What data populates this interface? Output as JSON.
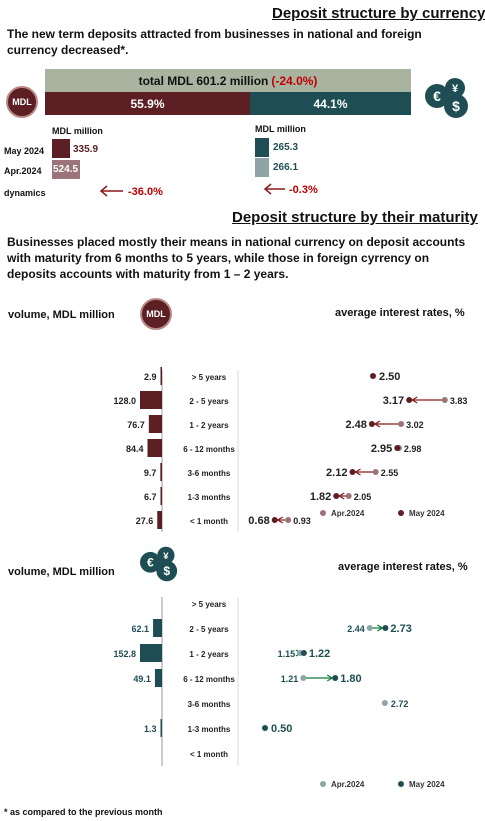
{
  "structure_currency": {
    "title": "Deposit structure by currency",
    "intro": "The new term deposits attracted from businesses in national and foreign currency decreased*.",
    "total_label": "total MDL 601.2 million",
    "total_change": "(-24.0%)",
    "share_mdl": "55.9%",
    "share_fx": "44.1%",
    "unit_left": "MDL million",
    "unit_right": "MDL million",
    "row_may": "May 2024",
    "row_apr": "Apr.2024",
    "row_dynamics": "dynamics",
    "mdl_may": "335.9",
    "mdl_apr": "524.5",
    "mdl_dynamics": "-36.0%",
    "fx_may": "265.3",
    "fx_apr": "266.1",
    "fx_dynamics": "-0.3%"
  },
  "mdl_badge": "MDL",
  "structure_maturity": {
    "title": "Deposit structure by their maturity",
    "intro": "Businesses placed mostly their means in national currency on deposit accounts with maturity from 6 months to 5 years, while those in foreign cyrrency on deposits accounts with maturity from 1 – 2 years."
  },
  "panel_mdl": {
    "volume_label": "volume, MDL million",
    "rates_label": "average interest rates, %",
    "legend_apr": "Apr.2024",
    "legend_may": "May 2024"
  },
  "panel_fx": {
    "volume_label": "volume, MDL million",
    "rates_label": "average interest rates, %",
    "legend_apr": "Apr.2024",
    "legend_may": "May 2024"
  },
  "footnote": "* as compared to the previous month",
  "colors": {
    "maroon": "#5b1f24",
    "teal": "#1e4e54",
    "maroon_light": "#9a7478",
    "teal_light": "#8fa4a6",
    "header_grey": "#a8b4a0",
    "red": "#c00000"
  },
  "chart_data": [
    {
      "type": "bar",
      "categories": [
        "> 5 years",
        "2 - 5 years",
        "1 - 2 years",
        "6 - 12 months",
        "3-6 months",
        "1-3 months",
        "< 1 month"
      ],
      "values": [
        2.9,
        128.0,
        76.7,
        84.4,
        9.7,
        6.7,
        27.6
      ],
      "value_labels": [
        "2.9",
        "128.0",
        "76.7",
        "84.4",
        "9.7",
        "6.7",
        "27.6"
      ],
      "title": "volume, MDL million"
    },
    {
      "type": "scatter",
      "categories": [
        "> 5 years",
        "2 - 5 years",
        "1 - 2 years",
        "6 - 12 months",
        "3-6 months",
        "1-3 months",
        "< 1 month"
      ],
      "series": [
        {
          "name": "Apr.2024",
          "values": [
            null,
            3.83,
            3.02,
            2.98,
            2.55,
            2.05,
            0.93
          ],
          "labels": [
            "",
            "3.83",
            "3.02",
            "2.98",
            "2.55",
            "2.05",
            "0.93"
          ]
        },
        {
          "name": "May 2024",
          "values": [
            2.5,
            3.17,
            2.48,
            2.95,
            2.12,
            1.82,
            0.68
          ],
          "labels": [
            "2.50",
            "3.17",
            "2.48",
            "2.95",
            "2.12",
            "1.82",
            "0.68"
          ]
        }
      ],
      "title": "average interest rates, %",
      "xlim": [
        0,
        4.2
      ]
    },
    {
      "type": "bar",
      "categories": [
        "> 5 years",
        "2 - 5 years",
        "1 - 2 years",
        "6 - 12 months",
        "3-6 months",
        "1-3 months",
        "< 1 month"
      ],
      "values": [
        null,
        62.1,
        152.8,
        49.1,
        null,
        1.3,
        null
      ],
      "value_labels": [
        "",
        "62.1",
        "152.8",
        "49.1",
        "",
        "1.3",
        ""
      ],
      "title": "volume, MDL million"
    },
    {
      "type": "scatter",
      "categories": [
        "> 5 years",
        "2 - 5 years",
        "1 - 2 years",
        "6 - 12 months",
        "3-6 months",
        "1-3 months",
        "< 1 month"
      ],
      "series": [
        {
          "name": "Apr.2024",
          "values": [
            null,
            2.44,
            1.15,
            1.21,
            2.72,
            null,
            null
          ],
          "labels": [
            "",
            "2.44",
            "1.15",
            "1.21",
            "2.72",
            "",
            ""
          ]
        },
        {
          "name": "May 2024",
          "values": [
            null,
            2.73,
            1.22,
            1.8,
            null,
            0.5,
            null
          ],
          "labels": [
            "",
            "2.73",
            "1.22",
            "1.80",
            "",
            "0.50",
            ""
          ]
        }
      ],
      "title": "average interest rates, %",
      "xlim": [
        0,
        4.2
      ]
    }
  ]
}
